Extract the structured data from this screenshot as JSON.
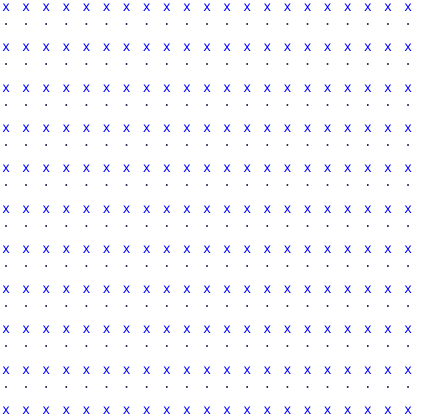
{
  "pattern": {
    "cross_char": "x",
    "dot_char": ".",
    "cross_rows": 11,
    "dot_rows": 10,
    "columns": 21,
    "cross_color": "#0000ff",
    "dot_color": "#2f2f5a",
    "background": "#ffffff"
  }
}
